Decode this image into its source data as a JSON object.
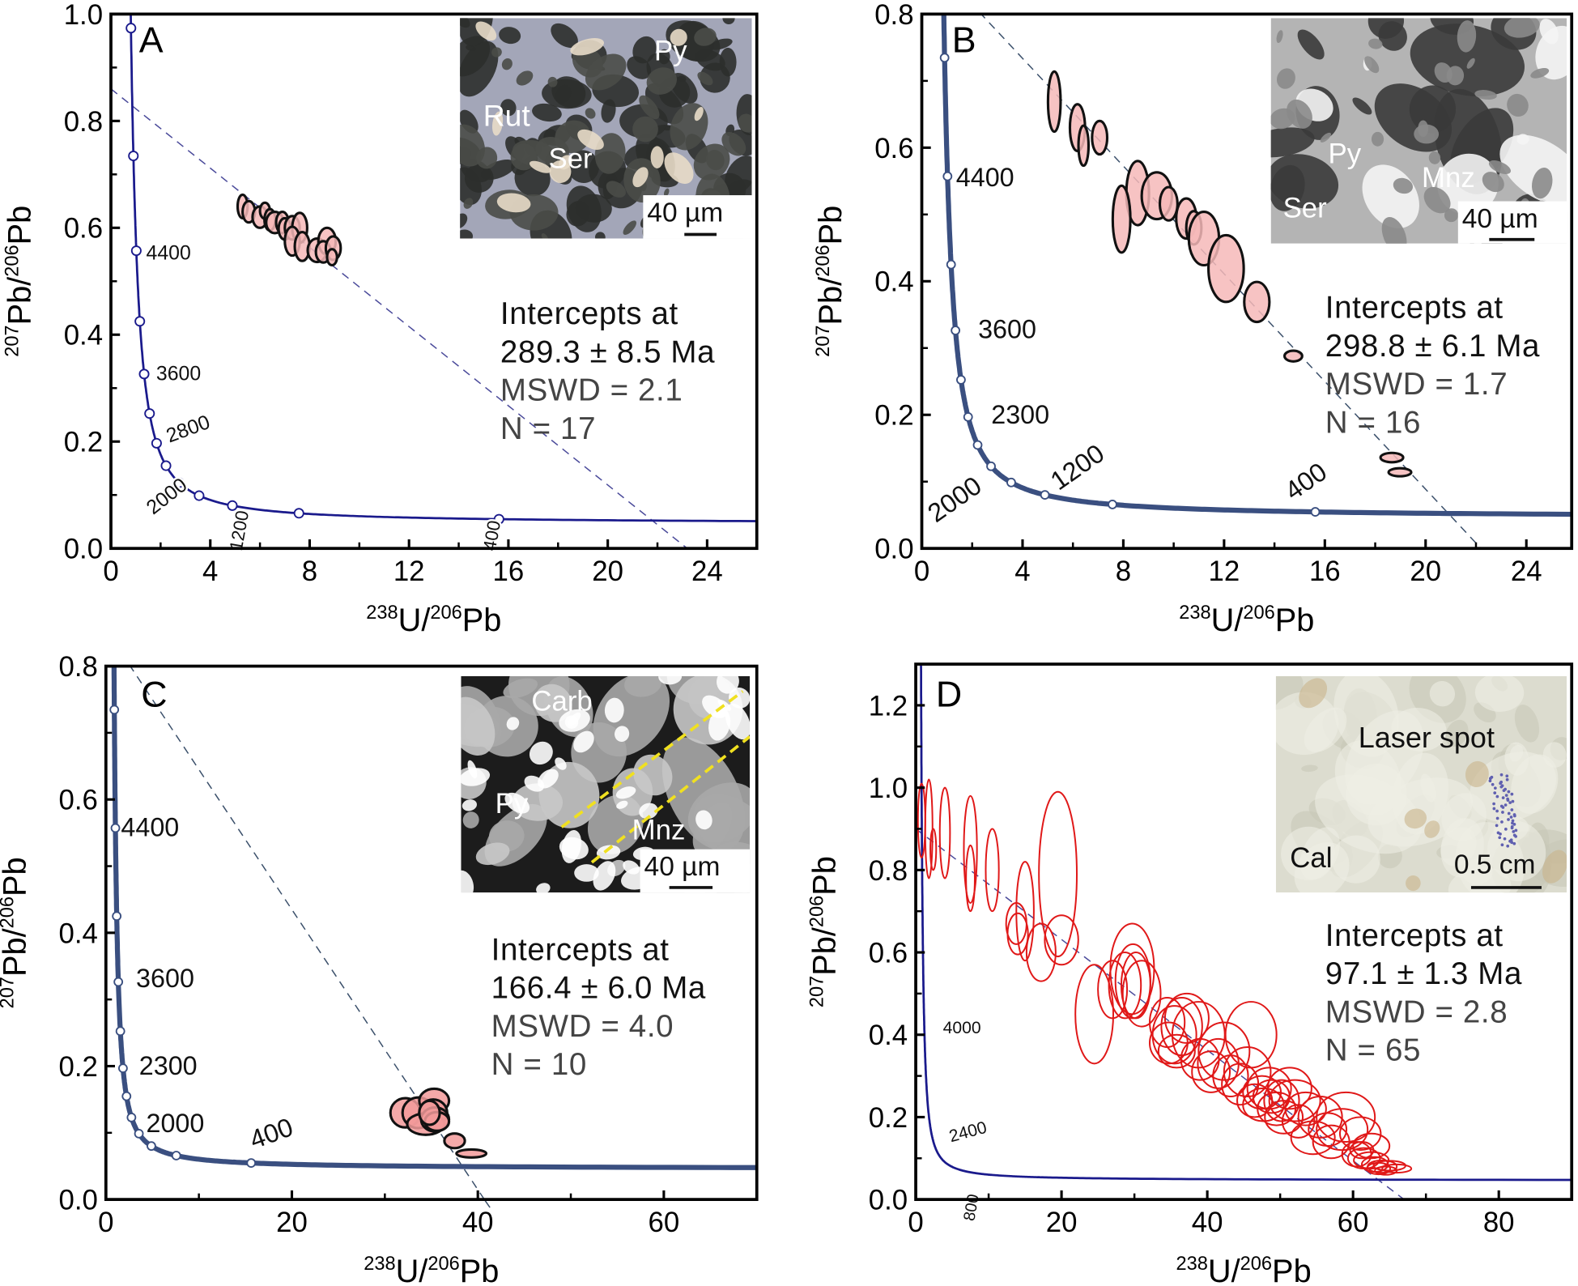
{
  "chart_data": [
    {
      "panel": "A",
      "type": "scatter",
      "xlabel": {
        "sup1": "238",
        "t1": "U/",
        "sup2": "206",
        "t2": "Pb"
      },
      "ylabel": {
        "sup1": "207",
        "t1": "Pb/",
        "sup2": "206",
        "t2": "Pb"
      },
      "xlim": [
        0,
        26
      ],
      "ylim": [
        0,
        1.0
      ],
      "xticks": [
        0,
        4,
        8,
        12,
        16,
        20,
        24
      ],
      "xtick_labels": [
        "0",
        "4",
        "8",
        "12",
        "16",
        "20",
        "24"
      ],
      "yticks": [
        0,
        0.2,
        0.4,
        0.6,
        0.8,
        1.0
      ],
      "ytick_labels": [
        "0.0",
        "0.2",
        "0.4",
        "0.6",
        "0.8",
        "1.0"
      ],
      "concordia": {
        "color": "#1a1a8c",
        "style": "thin",
        "marker_ages_ma": [
          400,
          800,
          1200,
          1600,
          2000,
          2400,
          2800,
          3200,
          3600,
          4000,
          4400,
          4800,
          5200
        ],
        "age_labels": [
          "4400",
          "3600",
          "2800",
          "2000",
          "1200",
          "400"
        ]
      },
      "discordia": {
        "y_intercept": 0.86,
        "x_intercept": 23.2,
        "color": "#4a4a9a"
      },
      "ellipses": {
        "fill": "#f6b8b8",
        "stroke": "#111111",
        "items": [
          [
            5.3,
            0.64,
            0.2,
            0.022
          ],
          [
            5.55,
            0.63,
            0.25,
            0.02
          ],
          [
            6.0,
            0.62,
            0.3,
            0.02
          ],
          [
            6.2,
            0.632,
            0.2,
            0.015
          ],
          [
            6.4,
            0.615,
            0.22,
            0.02
          ],
          [
            6.6,
            0.61,
            0.35,
            0.02
          ],
          [
            6.9,
            0.61,
            0.25,
            0.02
          ],
          [
            7.0,
            0.598,
            0.25,
            0.02
          ],
          [
            7.3,
            0.6,
            0.3,
            0.022
          ],
          [
            7.6,
            0.6,
            0.3,
            0.028
          ],
          [
            7.3,
            0.575,
            0.3,
            0.027
          ],
          [
            7.7,
            0.565,
            0.3,
            0.027
          ],
          [
            8.3,
            0.558,
            0.38,
            0.022
          ],
          [
            8.7,
            0.575,
            0.35,
            0.025
          ],
          [
            8.55,
            0.555,
            0.3,
            0.02
          ],
          [
            8.95,
            0.562,
            0.3,
            0.022
          ],
          [
            8.9,
            0.545,
            0.2,
            0.015
          ]
        ]
      },
      "stats": [
        "Intercepts at",
        "289.3 ± 8.5 Ma",
        "MSWD = 2.1",
        "N = 17"
      ],
      "inset": {
        "labels": [
          "Rut",
          "Ser",
          "Py"
        ],
        "scale": "40 µm"
      }
    },
    {
      "panel": "B",
      "type": "scatter",
      "xlabel": {
        "sup1": "238",
        "t1": "U/",
        "sup2": "206",
        "t2": "Pb"
      },
      "ylabel": {
        "sup1": "207",
        "t1": "Pb/",
        "sup2": "206",
        "t2": "Pb"
      },
      "xlim": [
        0,
        25.8
      ],
      "ylim": [
        0,
        0.8
      ],
      "xticks": [
        0,
        4,
        8,
        12,
        16,
        20,
        24
      ],
      "xtick_labels": [
        "0",
        "4",
        "8",
        "12",
        "16",
        "20",
        "24"
      ],
      "yticks": [
        0,
        0.2,
        0.4,
        0.6,
        0.8
      ],
      "ytick_labels": [
        "0.0",
        "0.2",
        "0.4",
        "0.6",
        "0.8"
      ],
      "concordia": {
        "color": "#3a4f80",
        "style": "thick",
        "marker_ages_ma": [
          400,
          800,
          1200,
          1600,
          2000,
          2400,
          2800,
          3200,
          3600,
          4000,
          4400,
          4800
        ],
        "age_labels": [
          "4400",
          "3600",
          "2300",
          "2000",
          "1200",
          "400"
        ]
      },
      "discordia": {
        "y_intercept": 0.895,
        "x_intercept": 22.2,
        "color": "#3a4f6a"
      },
      "ellipses": {
        "fill": "#f6b8b8",
        "stroke": "#111111",
        "items": [
          [
            5.26,
            0.669,
            0.25,
            0.045
          ],
          [
            6.18,
            0.63,
            0.3,
            0.035
          ],
          [
            6.42,
            0.603,
            0.2,
            0.03
          ],
          [
            7.06,
            0.615,
            0.3,
            0.025
          ],
          [
            8.57,
            0.532,
            0.45,
            0.048
          ],
          [
            7.93,
            0.493,
            0.35,
            0.05
          ],
          [
            9.33,
            0.528,
            0.6,
            0.035
          ],
          [
            9.8,
            0.516,
            0.35,
            0.025
          ],
          [
            10.5,
            0.494,
            0.4,
            0.03
          ],
          [
            10.8,
            0.48,
            0.3,
            0.025
          ],
          [
            11.2,
            0.464,
            0.6,
            0.04
          ],
          [
            12.08,
            0.419,
            0.7,
            0.05
          ],
          [
            13.3,
            0.369,
            0.5,
            0.03
          ],
          [
            14.75,
            0.288,
            0.35,
            0.008
          ],
          [
            18.66,
            0.136,
            0.45,
            0.007
          ],
          [
            18.98,
            0.114,
            0.45,
            0.006
          ]
        ]
      },
      "stats": [
        "Intercepts at",
        "298.8 ± 6.1 Ma",
        "MSWD = 1.7",
        "N = 16"
      ],
      "inset": {
        "labels": [
          "Py",
          "Mnz",
          "Ser"
        ],
        "scale": "40 µm"
      }
    },
    {
      "panel": "C",
      "type": "scatter",
      "xlabel": {
        "sup1": "238",
        "t1": "U/",
        "sup2": "206",
        "t2": "Pb"
      },
      "ylabel": {
        "sup1": "207",
        "t1": "Pb/",
        "sup2": "206",
        "t2": "Pb"
      },
      "xlim": [
        0,
        70
      ],
      "ylim": [
        0,
        0.8
      ],
      "xticks": [
        0,
        20,
        40,
        60
      ],
      "xtick_labels": [
        "0",
        "20",
        "40",
        "60"
      ],
      "yticks": [
        0,
        0.2,
        0.4,
        0.6,
        0.8
      ],
      "ytick_labels": [
        "0.0",
        "0.2",
        "0.4",
        "0.6",
        "0.8"
      ],
      "concordia": {
        "color": "#3a4f80",
        "style": "thick",
        "marker_ages_ma": [
          400,
          800,
          1200,
          1600,
          2000,
          2400,
          2800,
          3200,
          3600,
          4000,
          4400,
          4800
        ],
        "age_labels": [
          "4400",
          "3600",
          "2300",
          "2000",
          "400"
        ]
      },
      "discordia": {
        "y_intercept": 0.855,
        "x_intercept": 40.7,
        "color": "#3a4f6a"
      },
      "ellipses": {
        "fill": "#f29a9a",
        "stroke": "#111111",
        "items": [
          [
            32.2,
            0.13,
            1.6,
            0.022
          ],
          [
            33.6,
            0.13,
            1.7,
            0.023
          ],
          [
            35.3,
            0.148,
            1.6,
            0.018
          ],
          [
            35.2,
            0.13,
            1.5,
            0.02
          ],
          [
            34.4,
            0.113,
            2.0,
            0.016
          ],
          [
            35.4,
            0.12,
            1.5,
            0.018
          ],
          [
            35.6,
            0.117,
            1.3,
            0.014
          ],
          [
            34.8,
            0.13,
            1.1,
            0.018
          ],
          [
            37.5,
            0.088,
            1.1,
            0.011
          ],
          [
            39.3,
            0.069,
            1.6,
            0.006
          ]
        ]
      },
      "stats": [
        "Intercepts at",
        "166.4 ± 6.0 Ma",
        "MSWD = 4.0",
        "N = 10"
      ],
      "inset": {
        "labels": [
          "Carb",
          "Py",
          "Mnz"
        ],
        "scale": "40 µm"
      }
    },
    {
      "panel": "D",
      "type": "scatter",
      "xlabel": {
        "sup1": "238",
        "t1": "U/",
        "sup2": "206",
        "t2": "Pb"
      },
      "ylabel": {
        "sup1": "207",
        "t1": "Pb/",
        "sup2": "206",
        "t2": "Pb"
      },
      "xlim": [
        0,
        90
      ],
      "ylim": [
        0,
        1.3
      ],
      "xticks": [
        0,
        20,
        40,
        60,
        80
      ],
      "xtick_labels": [
        "0",
        "20",
        "40",
        "60",
        "80"
      ],
      "yticks": [
        0,
        0.2,
        0.4,
        0.6,
        0.8,
        1.0,
        1.2
      ],
      "ytick_labels": [
        "0.0",
        "0.2",
        "0.4",
        "0.6",
        "0.8",
        "1.0",
        "1.2"
      ],
      "concordia": {
        "color": "#1a1a8c",
        "style": "thin",
        "marker_ages_ma": [],
        "age_labels": [
          "4000",
          "2400",
          "800"
        ]
      },
      "discordia": {
        "y_intercept": 0.9,
        "x_intercept": 67,
        "color": "#4a4a9a"
      },
      "ellipses": {
        "fill": "none",
        "stroke": "#e01818",
        "items": [
          [
            0.8,
            0.92,
            0.5,
            0.09
          ],
          [
            1.8,
            0.9,
            0.5,
            0.12
          ],
          [
            2.4,
            0.85,
            0.4,
            0.05
          ],
          [
            4.0,
            0.89,
            0.7,
            0.11
          ],
          [
            7.5,
            0.85,
            0.9,
            0.13
          ],
          [
            7.5,
            0.78,
            0.6,
            0.08
          ],
          [
            10.5,
            0.8,
            0.9,
            0.1
          ],
          [
            15.0,
            0.7,
            1.2,
            0.12
          ],
          [
            19.5,
            0.79,
            2.6,
            0.2
          ],
          [
            14.0,
            0.645,
            1.4,
            0.05
          ],
          [
            13.8,
            0.67,
            1.4,
            0.05
          ],
          [
            17.2,
            0.6,
            2.0,
            0.07
          ],
          [
            20.0,
            0.63,
            2.3,
            0.06
          ],
          [
            24.5,
            0.45,
            2.6,
            0.12
          ],
          [
            27.0,
            0.51,
            2.0,
            0.07
          ],
          [
            29.7,
            0.56,
            3.0,
            0.11
          ],
          [
            29.8,
            0.53,
            2.4,
            0.09
          ],
          [
            30.2,
            0.52,
            2.0,
            0.08
          ],
          [
            31.0,
            0.5,
            2.6,
            0.08
          ],
          [
            28.7,
            0.52,
            2.2,
            0.08
          ],
          [
            34.5,
            0.43,
            2.4,
            0.06
          ],
          [
            35.5,
            0.4,
            3.0,
            0.07
          ],
          [
            36.5,
            0.42,
            2.8,
            0.07
          ],
          [
            34.7,
            0.38,
            2.6,
            0.05
          ],
          [
            37.2,
            0.44,
            3.0,
            0.06
          ],
          [
            38.8,
            0.4,
            3.6,
            0.08
          ],
          [
            35.8,
            0.36,
            2.5,
            0.04
          ],
          [
            39.0,
            0.34,
            2.6,
            0.05
          ],
          [
            41.5,
            0.33,
            2.8,
            0.06
          ],
          [
            42.3,
            0.36,
            3.5,
            0.07
          ],
          [
            46.0,
            0.4,
            3.5,
            0.08
          ],
          [
            40.5,
            0.31,
            2.6,
            0.05
          ],
          [
            43.2,
            0.3,
            2.4,
            0.05
          ],
          [
            44.5,
            0.28,
            2.5,
            0.05
          ],
          [
            45.5,
            0.31,
            3.2,
            0.06
          ],
          [
            47.5,
            0.26,
            2.6,
            0.04
          ],
          [
            48.5,
            0.27,
            3.0,
            0.05
          ],
          [
            46.5,
            0.24,
            2.4,
            0.04
          ],
          [
            47.7,
            0.23,
            2.8,
            0.04
          ],
          [
            49.5,
            0.22,
            2.6,
            0.04
          ],
          [
            48.8,
            0.25,
            2.5,
            0.04
          ],
          [
            50.2,
            0.24,
            2.4,
            0.05
          ],
          [
            51.3,
            0.27,
            3.0,
            0.05
          ],
          [
            52.0,
            0.24,
            3.5,
            0.05
          ],
          [
            50.5,
            0.2,
            2.6,
            0.04
          ],
          [
            52.5,
            0.19,
            2.2,
            0.04
          ],
          [
            55.5,
            0.2,
            3.0,
            0.05
          ],
          [
            54.5,
            0.15,
            3.0,
            0.04
          ],
          [
            57.0,
            0.14,
            2.5,
            0.04
          ],
          [
            59.0,
            0.2,
            4.0,
            0.06
          ],
          [
            58.5,
            0.17,
            3.5,
            0.05
          ],
          [
            61.0,
            0.16,
            2.8,
            0.04
          ],
          [
            62.5,
            0.13,
            2.5,
            0.03
          ],
          [
            60.5,
            0.11,
            2.0,
            0.03
          ],
          [
            61.5,
            0.1,
            2.2,
            0.025
          ],
          [
            62.5,
            0.095,
            2.4,
            0.02
          ],
          [
            63.0,
            0.085,
            1.8,
            0.018
          ],
          [
            64.0,
            0.08,
            2.0,
            0.015
          ],
          [
            65.0,
            0.082,
            2.2,
            0.012
          ],
          [
            63.5,
            0.075,
            1.6,
            0.014
          ],
          [
            66.0,
            0.075,
            2.0,
            0.01
          ],
          [
            64.5,
            0.07,
            1.5,
            0.01
          ],
          [
            61.2,
            0.12,
            1.6,
            0.02
          ],
          [
            56.5,
            0.17,
            2.6,
            0.04
          ],
          [
            53.5,
            0.22,
            2.8,
            0.04
          ]
        ]
      },
      "stats": [
        "Intercepts at",
        "97.1 ± 1.3 Ma",
        "MSWD = 2.8",
        "N = 65"
      ],
      "inset": {
        "labels": [
          "Laser spot",
          "Cal"
        ],
        "scale": "0.5 cm"
      }
    }
  ]
}
